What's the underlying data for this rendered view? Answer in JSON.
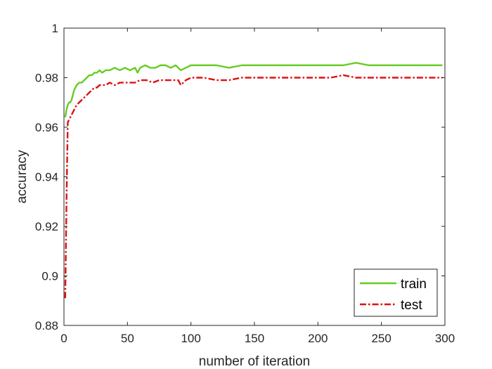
{
  "chart_data": {
    "type": "line",
    "title": "",
    "xlabel": "number of iteration",
    "ylabel": "accuracy",
    "xlim": [
      0,
      300
    ],
    "ylim": [
      0.88,
      1
    ],
    "xticks": [
      0,
      50,
      100,
      150,
      200,
      250,
      300
    ],
    "xtick_labels": [
      "0",
      "50",
      "100",
      "150",
      "200",
      "250",
      "300"
    ],
    "yticks": [
      0.88,
      0.9,
      0.92,
      0.94,
      0.96,
      0.98,
      1
    ],
    "ytick_labels": [
      "0.88",
      "0.9",
      "0.92",
      "0.94",
      "0.96",
      "0.98",
      "1"
    ],
    "grid": false,
    "legend_position": "bottom-right",
    "series": [
      {
        "name": "train",
        "color": "#66cc22",
        "line_style": "solid",
        "x": [
          1,
          2,
          3,
          4,
          5,
          6,
          7,
          8,
          9,
          10,
          12,
          14,
          16,
          18,
          20,
          22,
          24,
          26,
          28,
          30,
          33,
          36,
          40,
          44,
          48,
          52,
          56,
          58,
          60,
          64,
          68,
          72,
          76,
          80,
          84,
          88,
          92,
          96,
          100,
          110,
          120,
          130,
          140,
          150,
          160,
          170,
          180,
          190,
          200,
          210,
          220,
          230,
          240,
          250,
          260,
          270,
          280,
          290,
          298
        ],
        "y": [
          0.964,
          0.967,
          0.969,
          0.97,
          0.97,
          0.971,
          0.973,
          0.975,
          0.976,
          0.977,
          0.978,
          0.978,
          0.979,
          0.98,
          0.981,
          0.981,
          0.982,
          0.982,
          0.983,
          0.982,
          0.983,
          0.983,
          0.984,
          0.983,
          0.984,
          0.983,
          0.984,
          0.982,
          0.984,
          0.985,
          0.984,
          0.984,
          0.985,
          0.985,
          0.984,
          0.985,
          0.983,
          0.984,
          0.985,
          0.985,
          0.985,
          0.984,
          0.985,
          0.985,
          0.985,
          0.985,
          0.985,
          0.985,
          0.985,
          0.985,
          0.985,
          0.986,
          0.985,
          0.985,
          0.985,
          0.985,
          0.985,
          0.985,
          0.985
        ]
      },
      {
        "name": "test",
        "color": "#dd1111",
        "line_style": "dashdot",
        "x": [
          1,
          2,
          3,
          4,
          5,
          6,
          7,
          8,
          9,
          10,
          12,
          14,
          16,
          18,
          20,
          22,
          24,
          26,
          28,
          30,
          33,
          36,
          40,
          44,
          48,
          52,
          56,
          60,
          65,
          70,
          75,
          80,
          85,
          90,
          92,
          94,
          96,
          100,
          110,
          120,
          130,
          140,
          150,
          160,
          170,
          180,
          190,
          200,
          210,
          220,
          230,
          240,
          250,
          260,
          270,
          280,
          290,
          298
        ],
        "y": [
          0.891,
          0.93,
          0.962,
          0.963,
          0.964,
          0.965,
          0.966,
          0.967,
          0.968,
          0.969,
          0.97,
          0.971,
          0.972,
          0.973,
          0.974,
          0.975,
          0.976,
          0.976,
          0.977,
          0.977,
          0.977,
          0.978,
          0.977,
          0.978,
          0.978,
          0.978,
          0.978,
          0.979,
          0.979,
          0.978,
          0.979,
          0.979,
          0.979,
          0.979,
          0.977,
          0.978,
          0.979,
          0.98,
          0.98,
          0.979,
          0.979,
          0.98,
          0.98,
          0.98,
          0.98,
          0.98,
          0.98,
          0.98,
          0.98,
          0.981,
          0.98,
          0.98,
          0.98,
          0.98,
          0.98,
          0.98,
          0.98,
          0.98
        ]
      }
    ]
  }
}
